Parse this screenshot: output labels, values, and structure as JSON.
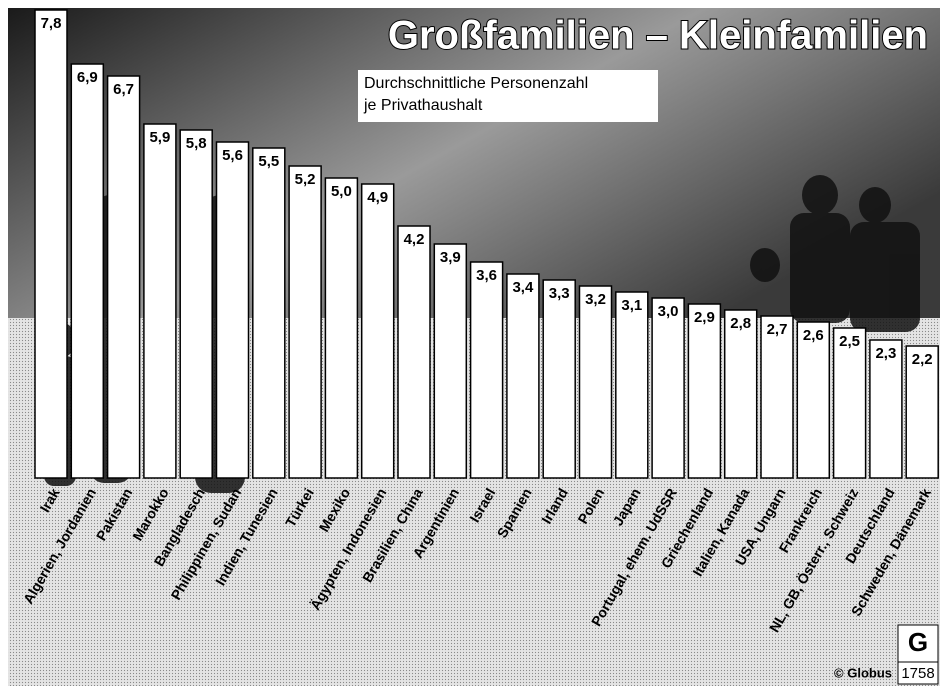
{
  "chart_data": {
    "type": "bar",
    "title": "Großfamilien – Kleinfamilien",
    "subtitle": [
      "Durchschnittliche Personenzahl",
      "je Privathaushalt"
    ],
    "categories": [
      "Irak",
      "Algerien, Jordanien",
      "Pakistan",
      "Marokko",
      "Bangladesch",
      "Philippinen, Sudan",
      "Indien, Tunesien",
      "Türkei",
      "Mexiko",
      "Ägypten, Indonesien",
      "Brasilien, China",
      "Argentinien",
      "Israel",
      "Spanien",
      "Irland",
      "Polen",
      "Japan",
      "Portugal, ehem. UdSSR",
      "Griechenland",
      "Italien, Kanada",
      "USA, Ungarn",
      "Frankreich",
      "NL, GB, Österr., Schweiz",
      "Deutschland",
      "Schweden, Dänemark"
    ],
    "values": [
      7.8,
      6.9,
      6.7,
      5.9,
      5.8,
      5.6,
      5.5,
      5.2,
      5.0,
      4.9,
      4.2,
      3.9,
      3.6,
      3.4,
      3.3,
      3.2,
      3.1,
      3.0,
      2.9,
      2.8,
      2.7,
      2.6,
      2.5,
      2.3,
      2.2
    ],
    "value_labels": [
      "7,8",
      "6,9",
      "6,7",
      "5,9",
      "5,8",
      "5,6",
      "5,5",
      "5,2",
      "5,0",
      "4,9",
      "4,2",
      "3,9",
      "3,6",
      "3,4",
      "3,3",
      "3,2",
      "3,1",
      "3,0",
      "2,9",
      "2,8",
      "2,7",
      "2,6",
      "2,5",
      "2,3",
      "2,2"
    ],
    "color": "#ffffff",
    "source": "© Globus",
    "code": "1758"
  }
}
